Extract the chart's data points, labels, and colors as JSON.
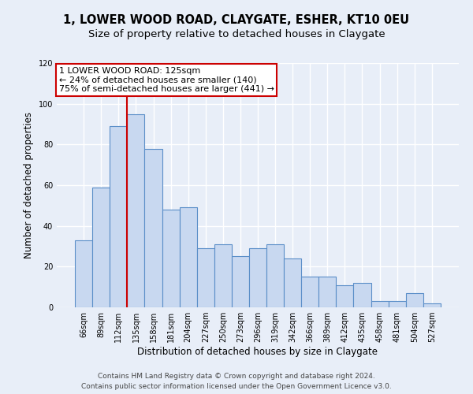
{
  "title": "1, LOWER WOOD ROAD, CLAYGATE, ESHER, KT10 0EU",
  "subtitle": "Size of property relative to detached houses in Claygate",
  "xlabel": "Distribution of detached houses by size in Claygate",
  "ylabel": "Number of detached properties",
  "bar_labels": [
    "66sqm",
    "89sqm",
    "112sqm",
    "135sqm",
    "158sqm",
    "181sqm",
    "204sqm",
    "227sqm",
    "250sqm",
    "273sqm",
    "296sqm",
    "319sqm",
    "342sqm",
    "366sqm",
    "389sqm",
    "412sqm",
    "435sqm",
    "458sqm",
    "481sqm",
    "504sqm",
    "527sqm"
  ],
  "bar_values": [
    33,
    59,
    89,
    95,
    78,
    48,
    49,
    29,
    31,
    25,
    29,
    31,
    24,
    15,
    15,
    11,
    12,
    3,
    3,
    7,
    2
  ],
  "bar_color": "#c8d8f0",
  "bar_edge_color": "#5a8ec8",
  "background_color": "#e8eef8",
  "grid_color": "#ffffff",
  "ylim": [
    0,
    120
  ],
  "yticks": [
    0,
    20,
    40,
    60,
    80,
    100,
    120
  ],
  "marker_line_color": "#cc0000",
  "annotation_line1": "1 LOWER WOOD ROAD: 125sqm",
  "annotation_line2": "← 24% of detached houses are smaller (140)",
  "annotation_line3": "75% of semi-detached houses are larger (441) →",
  "annotation_box_color": "#ffffff",
  "annotation_box_edge_color": "#cc0000",
  "footer_line1": "Contains HM Land Registry data © Crown copyright and database right 2024.",
  "footer_line2": "Contains public sector information licensed under the Open Government Licence v3.0.",
  "title_fontsize": 10.5,
  "subtitle_fontsize": 9.5,
  "axis_label_fontsize": 8.5,
  "tick_fontsize": 7,
  "annotation_fontsize": 8,
  "footer_fontsize": 6.5
}
